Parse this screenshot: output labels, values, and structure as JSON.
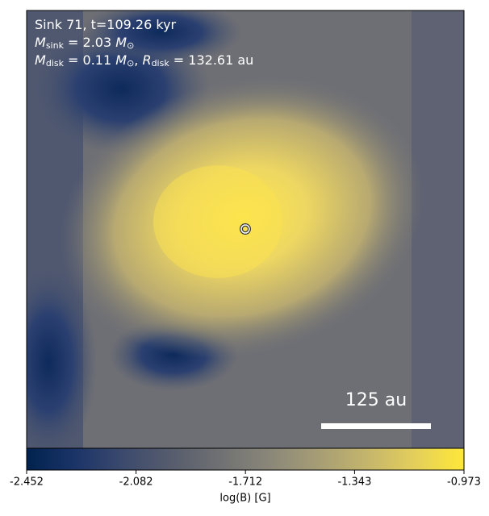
{
  "chart_data": {
    "type": "image",
    "annotations": [
      [
        {
          "text": "Sink 71, t=109.26 kyr"
        }
      ],
      [
        {
          "text": "M",
          "italic": true
        },
        {
          "text": "sink",
          "sub": true
        },
        {
          "text": " = 2.03 "
        },
        {
          "text": "M",
          "italic": true
        },
        {
          "text": "⊙",
          "sub": true
        }
      ],
      [
        {
          "text": "M",
          "italic": true
        },
        {
          "text": "disk",
          "sub": true
        },
        {
          "text": " = 0.11 "
        },
        {
          "text": "M",
          "italic": true
        },
        {
          "text": "⊙",
          "sub": true
        },
        {
          "text": ", "
        },
        {
          "text": "R",
          "italic": true
        },
        {
          "text": "disk",
          "sub": true
        },
        {
          "text": " = 132.61 au"
        }
      ]
    ],
    "scalebar_label": "125 au",
    "colorbar": {
      "label": "log(B) [G]",
      "lim": [
        -2.452,
        -0.973
      ],
      "ticks": [
        -2.452,
        -2.082,
        -1.712,
        -1.343,
        -0.973
      ],
      "colors": [
        "#00224e",
        "#1b3468",
        "#3c4a6d",
        "#575d6d",
        "#707173",
        "#8a8779",
        "#a69d75",
        "#c4b56c",
        "#e4cf5b",
        "#fee838"
      ]
    }
  }
}
